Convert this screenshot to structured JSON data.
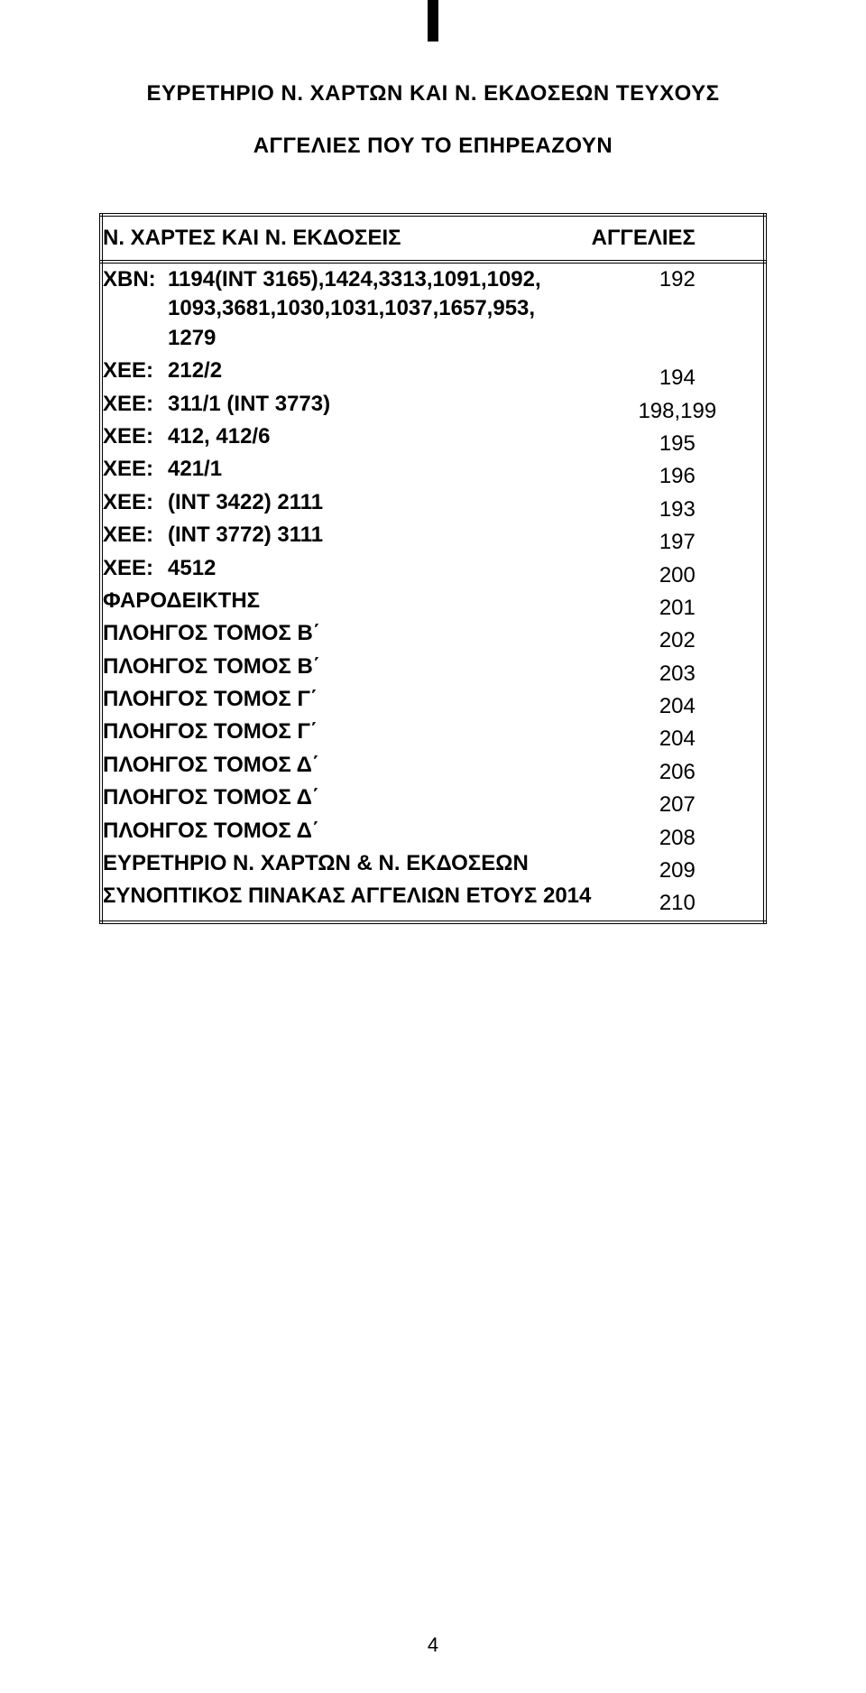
{
  "top_marker": "Ι",
  "title": "ΕΥΡΕΤΗΡΙΟ  Ν.  ΧΑΡΤΩΝ ΚΑΙ Ν.  ΕΚΔΟΣΕΩΝ ΤΕΥΧΟΥΣ",
  "subtitle": "ΑΓΓΕΛΙΕΣ ΠΟΥ ΤΟ ΕΠΗΡΕΑΖΟΥΝ",
  "table": {
    "header_left": "Ν. ΧΑΡΤΕΣ ΚΑΙ Ν. ΕΚΔΟΣΕΙΣ",
    "header_right": "ΑΓΓΕΛΙΕΣ",
    "rows": [
      {
        "prefix": "ΧΒΝ:",
        "body": "1194(ΙΝΤ 3165),1424,3313,1091,1092,",
        "cont": [
          "1093,3681,1030,1031,1037,1657,953,",
          "1279"
        ],
        "value": "192"
      },
      {
        "prefix": "ΧΕΕ:",
        "body": "212/2",
        "value": "194"
      },
      {
        "prefix": "ΧΕΕ:",
        "body": "311/1 (INT 3773)",
        "value": "198,199"
      },
      {
        "prefix": "ΧΕΕ:",
        "body": "412, 412/6",
        "value": "195"
      },
      {
        "prefix": "ΧΕΕ:",
        "body": "421/1",
        "value": "196"
      },
      {
        "prefix": "ΧΕΕ:",
        "body": "(INT 3422) 2111",
        "value": "193"
      },
      {
        "prefix": "ΧΕΕ:",
        "body": "(INT 3772) 3111",
        "value": "197"
      },
      {
        "prefix": "ΧΕΕ:",
        "body": "4512",
        "value": "200"
      },
      {
        "prefix": "",
        "body": "ΦΑΡΟΔΕΙΚΤΗΣ",
        "value": "201"
      },
      {
        "prefix": "",
        "body": "ΠΛΟΗΓΟΣ ΤΟΜΟΣ Β΄",
        "value": "202"
      },
      {
        "prefix": "",
        "body": "ΠΛΟΗΓΟΣ ΤΟΜΟΣ Β΄",
        "value": "203"
      },
      {
        "prefix": "",
        "body": "ΠΛΟΗΓΟΣ ΤΟΜΟΣ Γ΄",
        "value": "204"
      },
      {
        "prefix": "",
        "body": "ΠΛΟΗΓΟΣ ΤΟΜΟΣ Γ΄",
        "value": "204"
      },
      {
        "prefix": "",
        "body": "ΠΛΟΗΓΟΣ ΤΟΜΟΣ Δ΄",
        "value": "206"
      },
      {
        "prefix": "",
        "body": "ΠΛΟΗΓΟΣ ΤΟΜΟΣ Δ΄",
        "value": "207"
      },
      {
        "prefix": "",
        "body": "ΠΛΟΗΓΟΣ ΤΟΜΟΣ Δ΄",
        "value": "208"
      },
      {
        "prefix": "",
        "body": "ΕΥΡΕΤΗΡΙΟ Ν. ΧΑΡΤΩΝ & Ν. ΕΚΔΟΣΕΩΝ",
        "value": "209"
      },
      {
        "prefix": "",
        "body": "ΣΥΝΟΠΤΙΚΟΣ ΠΙΝΑΚΑΣ ΑΓΓΕΛΙΩΝ ΕΤΟΥΣ 2014",
        "value": "210"
      }
    ]
  },
  "page_number": "4",
  "colors": {
    "text": "#000000",
    "background": "#ffffff",
    "border": "#000000"
  },
  "fonts": {
    "family": "Arial",
    "title_size_pt": 18,
    "body_size_pt": 18
  }
}
